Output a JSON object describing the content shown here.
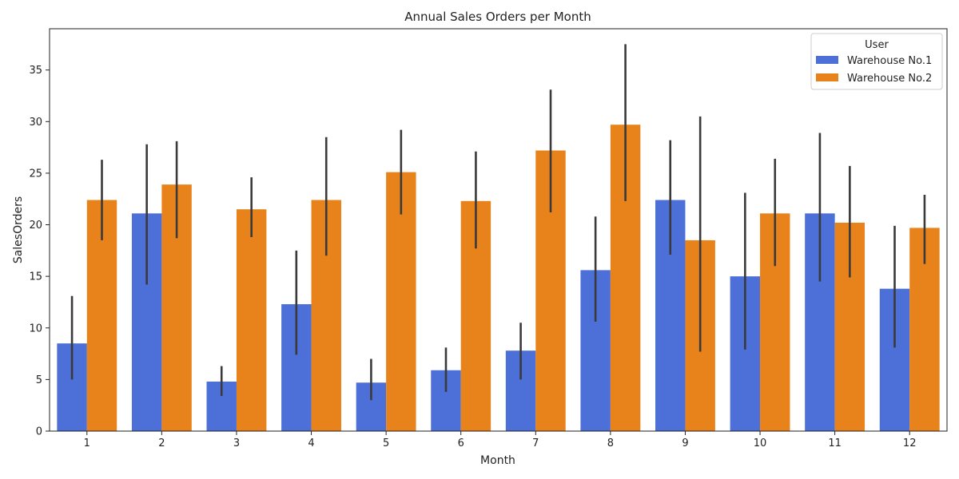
{
  "chart_data": {
    "type": "bar",
    "title": "Annual Sales Orders per Month",
    "xlabel": "Month",
    "ylabel": "SalesOrders",
    "categories": [
      "1",
      "2",
      "3",
      "4",
      "5",
      "6",
      "7",
      "8",
      "9",
      "10",
      "11",
      "12"
    ],
    "ylim": [
      0,
      39
    ],
    "yticks": [
      0,
      5,
      10,
      15,
      20,
      25,
      30,
      35
    ],
    "grid": false,
    "legend": {
      "title": "User",
      "position": "top-right"
    },
    "series": [
      {
        "name": "Warehouse No.1",
        "color": "#4c6fd8",
        "values": [
          8.5,
          21.1,
          4.8,
          12.3,
          4.7,
          5.9,
          7.8,
          15.6,
          22.4,
          15.0,
          21.1,
          13.8
        ],
        "error_low": [
          5.0,
          14.2,
          3.4,
          7.4,
          3.0,
          3.8,
          5.0,
          10.6,
          17.1,
          7.9,
          14.5,
          8.1
        ],
        "error_high": [
          13.1,
          27.8,
          6.3,
          17.5,
          7.0,
          8.1,
          10.5,
          20.8,
          28.2,
          23.1,
          28.9,
          19.9
        ]
      },
      {
        "name": "Warehouse No.2",
        "color": "#e8831c",
        "values": [
          22.4,
          23.9,
          21.5,
          22.4,
          25.1,
          22.3,
          27.2,
          29.7,
          18.5,
          21.1,
          20.2,
          19.7
        ],
        "error_low": [
          18.5,
          18.7,
          18.8,
          17.0,
          21.0,
          17.7,
          21.2,
          22.3,
          7.7,
          16.0,
          14.9,
          16.2
        ],
        "error_high": [
          26.3,
          28.1,
          24.6,
          28.5,
          29.2,
          27.1,
          33.1,
          37.5,
          30.5,
          26.4,
          25.7,
          22.9
        ]
      }
    ]
  }
}
